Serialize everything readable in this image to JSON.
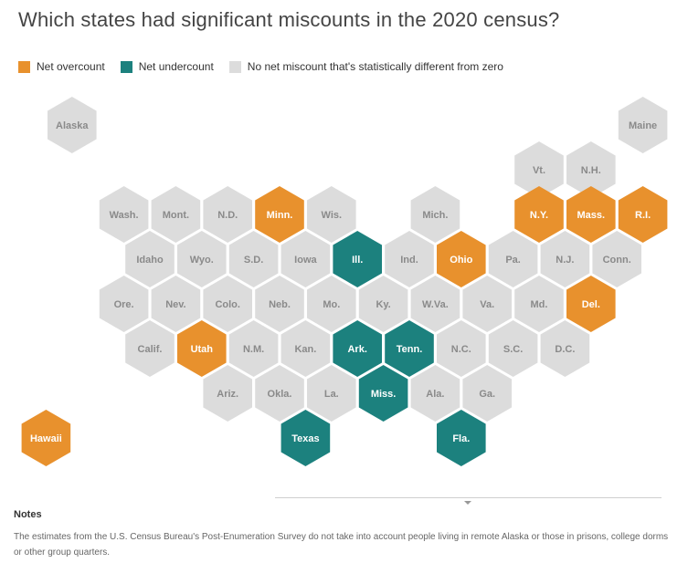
{
  "title": "Which states had significant miscounts in the 2020 census?",
  "legend": {
    "overcount": "Net overcount",
    "undercount": "Net undercount",
    "none": "No net miscount that's statistically different from zero"
  },
  "colors": {
    "overcount": "#e8912d",
    "undercount": "#1c817e",
    "none": "#dcdcdc",
    "label_on_fill": "#ffffff",
    "label_on_gray": "#8a8a8a"
  },
  "states": [
    {
      "label": "Alaska",
      "status": "none"
    },
    {
      "label": "Maine",
      "status": "none"
    },
    {
      "label": "Vt.",
      "status": "none"
    },
    {
      "label": "N.H.",
      "status": "none"
    },
    {
      "label": "Wash.",
      "status": "none"
    },
    {
      "label": "Mont.",
      "status": "none"
    },
    {
      "label": "N.D.",
      "status": "none"
    },
    {
      "label": "Minn.",
      "status": "overcount"
    },
    {
      "label": "Wis.",
      "status": "none"
    },
    {
      "label": "Mich.",
      "status": "none"
    },
    {
      "label": "N.Y.",
      "status": "overcount"
    },
    {
      "label": "Mass.",
      "status": "overcount"
    },
    {
      "label": "R.I.",
      "status": "overcount"
    },
    {
      "label": "Idaho",
      "status": "none"
    },
    {
      "label": "Wyo.",
      "status": "none"
    },
    {
      "label": "S.D.",
      "status": "none"
    },
    {
      "label": "Iowa",
      "status": "none"
    },
    {
      "label": "Ill.",
      "status": "undercount"
    },
    {
      "label": "Ind.",
      "status": "none"
    },
    {
      "label": "Ohio",
      "status": "overcount"
    },
    {
      "label": "Pa.",
      "status": "none"
    },
    {
      "label": "N.J.",
      "status": "none"
    },
    {
      "label": "Conn.",
      "status": "none"
    },
    {
      "label": "Ore.",
      "status": "none"
    },
    {
      "label": "Nev.",
      "status": "none"
    },
    {
      "label": "Colo.",
      "status": "none"
    },
    {
      "label": "Neb.",
      "status": "none"
    },
    {
      "label": "Mo.",
      "status": "none"
    },
    {
      "label": "Ky.",
      "status": "none"
    },
    {
      "label": "W.Va.",
      "status": "none"
    },
    {
      "label": "Va.",
      "status": "none"
    },
    {
      "label": "Md.",
      "status": "none"
    },
    {
      "label": "Del.",
      "status": "overcount"
    },
    {
      "label": "Calif.",
      "status": "none"
    },
    {
      "label": "Utah",
      "status": "overcount"
    },
    {
      "label": "N.M.",
      "status": "none"
    },
    {
      "label": "Kan.",
      "status": "none"
    },
    {
      "label": "Ark.",
      "status": "undercount"
    },
    {
      "label": "Tenn.",
      "status": "undercount"
    },
    {
      "label": "N.C.",
      "status": "none"
    },
    {
      "label": "S.C.",
      "status": "none"
    },
    {
      "label": "D.C.",
      "status": "none"
    },
    {
      "label": "Ariz.",
      "status": "none"
    },
    {
      "label": "Okla.",
      "status": "none"
    },
    {
      "label": "La.",
      "status": "none"
    },
    {
      "label": "Miss.",
      "status": "undercount"
    },
    {
      "label": "Ala.",
      "status": "none"
    },
    {
      "label": "Ga.",
      "status": "none"
    },
    {
      "label": "Hawaii",
      "status": "overcount"
    },
    {
      "label": "Texas",
      "status": "undercount"
    },
    {
      "label": "Fla.",
      "status": "undercount"
    }
  ],
  "notes": {
    "heading": "Notes",
    "text": "The estimates from the U.S. Census Bureau's Post-Enumeration Survey do not take into account people living in remote Alaska or those in prisons, college dorms or other group quarters."
  }
}
